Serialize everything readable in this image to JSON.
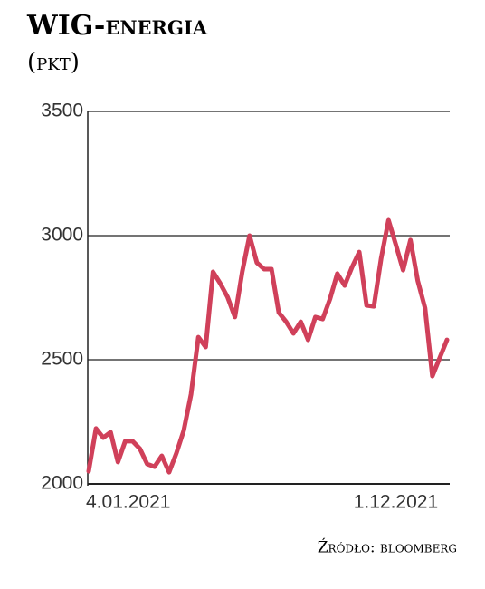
{
  "chart_data": {
    "type": "line",
    "title": "WIG-energia",
    "subtitle": "(pkt)",
    "source": "Źródło: bloomberg",
    "categories": [
      "4.01.2021",
      null,
      null,
      null,
      null,
      null,
      null,
      null,
      null,
      null,
      null,
      null,
      null,
      null,
      null,
      null,
      null,
      null,
      null,
      null,
      null,
      null,
      null,
      null,
      null,
      null,
      null,
      null,
      null,
      null,
      null,
      null,
      null,
      null,
      null,
      null,
      null,
      null,
      null,
      null,
      null,
      null,
      "1.12.2021",
      null,
      null,
      null,
      null,
      null,
      null,
      null
    ],
    "series": [
      {
        "name": "WIG-energia",
        "color": "#d0405a",
        "values": [
          2051,
          2223,
          2186,
          2208,
          2088,
          2172,
          2172,
          2142,
          2080,
          2069,
          2113,
          2047,
          2124,
          2215,
          2361,
          2591,
          2551,
          2854,
          2807,
          2752,
          2672,
          2854,
          3000,
          2891,
          2865,
          2865,
          2690,
          2653,
          2606,
          2653,
          2580,
          2672,
          2664,
          2745,
          2847,
          2799,
          2872,
          2934,
          2719,
          2715,
          2909,
          3062,
          2964,
          2861,
          2982,
          2818,
          2708,
          2434,
          2507,
          2580
        ]
      }
    ],
    "ylim": [
      2000,
      3500
    ],
    "yticks": [
      2000,
      2500,
      3000,
      3500
    ],
    "grid": true
  }
}
